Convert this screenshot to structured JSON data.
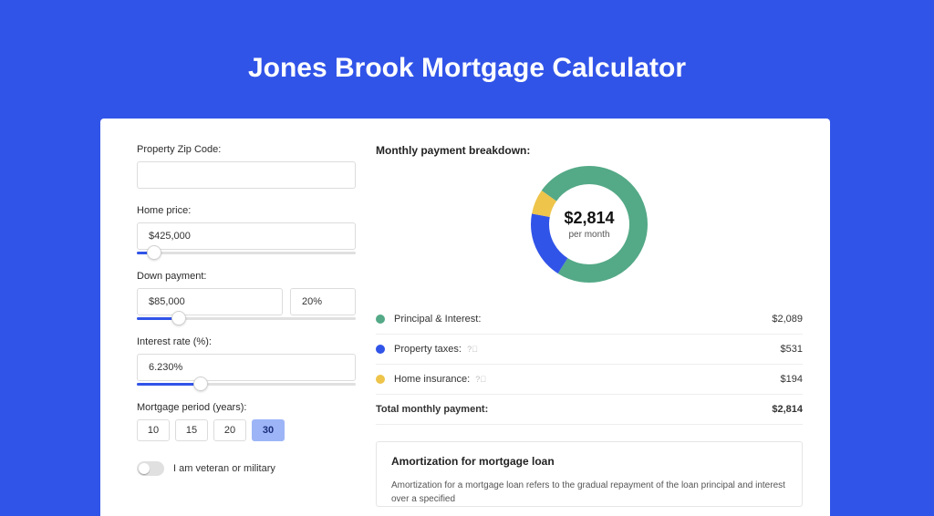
{
  "page": {
    "title": "Jones Brook Mortgage Calculator",
    "bg_color": "#3154e8"
  },
  "form": {
    "zip": {
      "label": "Property Zip Code:",
      "value": ""
    },
    "home_price": {
      "label": "Home price:",
      "value": "$425,000",
      "slider_pct": 8
    },
    "down_payment": {
      "label": "Down payment:",
      "value": "$85,000",
      "percent": "20%",
      "slider_pct": 19
    },
    "interest_rate": {
      "label": "Interest rate (%):",
      "value": "6.230%",
      "slider_pct": 29
    },
    "period": {
      "label": "Mortgage period (years):",
      "options": [
        "10",
        "15",
        "20",
        "30"
      ],
      "selected": "30"
    },
    "veteran": {
      "label": "I am veteran or military",
      "checked": false
    }
  },
  "breakdown": {
    "title": "Monthly payment breakdown:",
    "center_value": "$2,814",
    "center_sub": "per month",
    "donut": {
      "size": 128,
      "thickness": 20,
      "segments": [
        {
          "name": "principal_interest",
          "value": 2089,
          "color": "#54a987"
        },
        {
          "name": "property_taxes",
          "value": 531,
          "color": "#3154e8"
        },
        {
          "name": "home_insurance",
          "value": 194,
          "color": "#eec44a"
        }
      ],
      "start_angle": -55
    },
    "lines": [
      {
        "dot_color": "#54a987",
        "label": "Principal & Interest:",
        "value": "$2,089",
        "help": false
      },
      {
        "dot_color": "#3154e8",
        "label": "Property taxes:",
        "value": "$531",
        "help": true
      },
      {
        "dot_color": "#eec44a",
        "label": "Home insurance:",
        "value": "$194",
        "help": true
      }
    ],
    "total": {
      "label": "Total monthly payment:",
      "value": "$2,814"
    }
  },
  "amortization": {
    "title": "Amortization for mortgage loan",
    "text": "Amortization for a mortgage loan refers to the gradual repayment of the loan principal and interest over a specified"
  }
}
